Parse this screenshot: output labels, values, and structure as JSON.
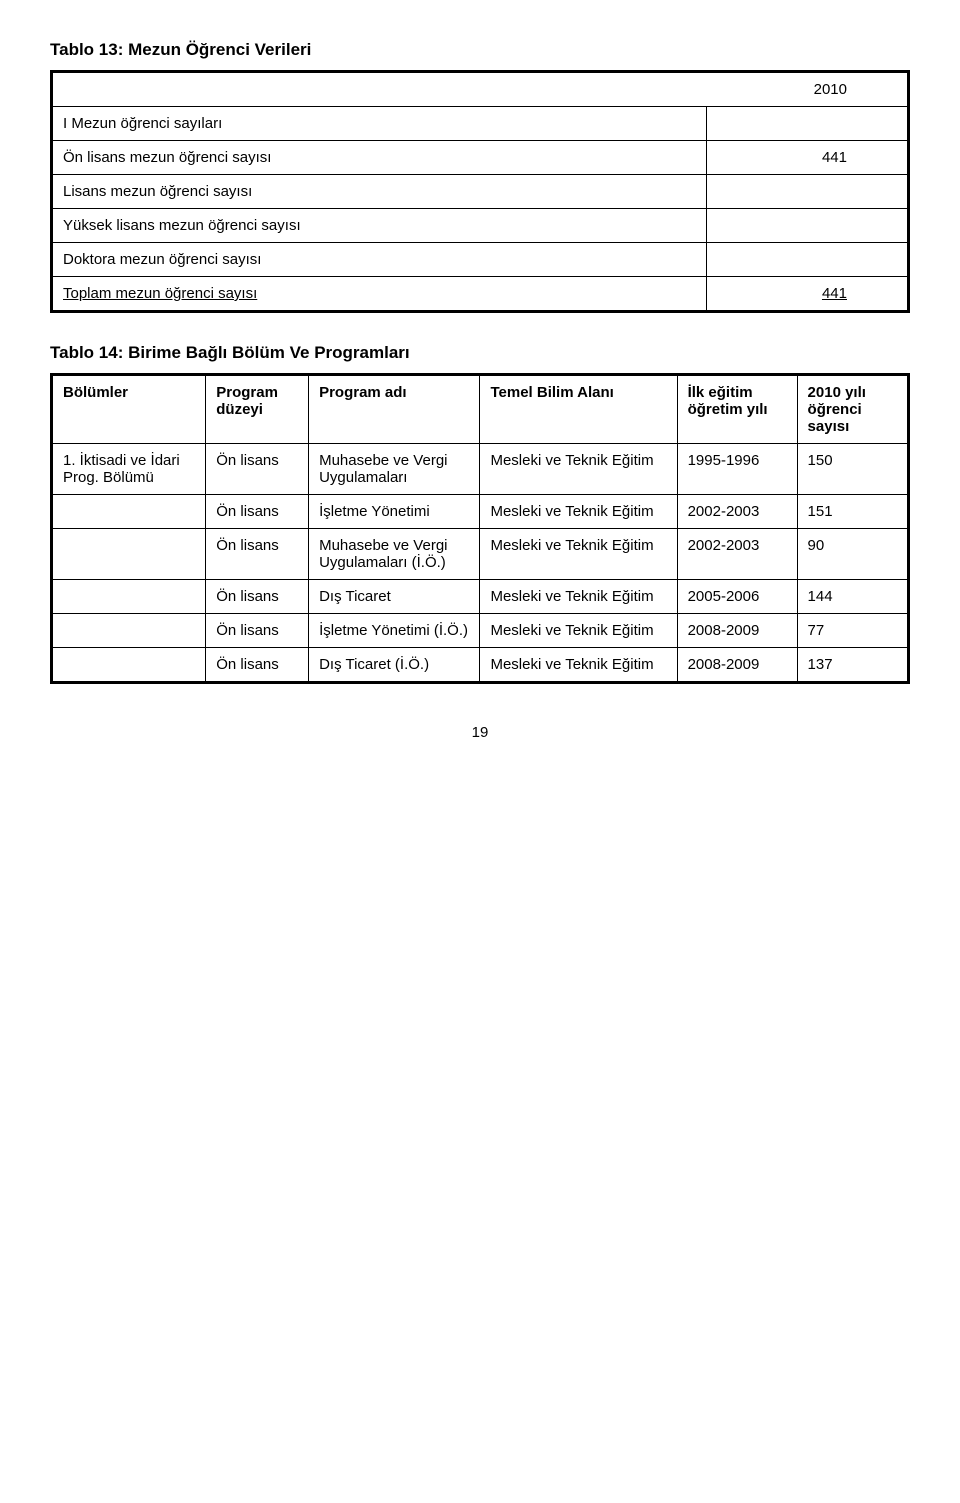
{
  "table13": {
    "title": "Tablo 13: Mezun Öğrenci Verileri",
    "year": "2010",
    "rows": [
      {
        "label": "I Mezun öğrenci sayıları",
        "value": ""
      },
      {
        "label": "Ön lisans mezun öğrenci sayısı",
        "value": "441"
      },
      {
        "label": "Lisans mezun öğrenci sayısı",
        "value": ""
      },
      {
        "label": "Yüksek lisans mezun öğrenci sayısı",
        "value": ""
      },
      {
        "label": "Doktora mezun öğrenci sayısı",
        "value": ""
      },
      {
        "label": "Toplam mezun öğrenci sayısı",
        "value": "441",
        "underline": true
      }
    ]
  },
  "table14": {
    "title": "Tablo 14: Birime Bağlı Bölüm Ve Programları",
    "headers": {
      "bolumler": "Bölümler",
      "duzeyi": "Program düzeyi",
      "program_adi": "Program adı",
      "temel": "Temel Bilim Alanı",
      "ilk_egitim": "İlk eğitim öğretim yılı",
      "ogrenci": "2010 yılı öğrenci sayısı"
    },
    "rows": [
      {
        "bolum": "1. İktisadi ve İdari Prog. Bölümü",
        "duzeyi": "Ön lisans",
        "program": "Muhasebe ve Vergi Uygulamaları",
        "temel": "Mesleki ve Teknik Eğitim",
        "yil": "1995-1996",
        "sayi": "150"
      },
      {
        "bolum": "",
        "duzeyi": "Ön lisans",
        "program": "İşletme Yönetimi",
        "temel": "Mesleki ve Teknik Eğitim",
        "yil": "2002-2003",
        "sayi": "151"
      },
      {
        "bolum": "",
        "duzeyi": "Ön lisans",
        "program": "Muhasebe ve Vergi Uygulamaları (İ.Ö.)",
        "temel": "Mesleki ve Teknik Eğitim",
        "yil": "2002-2003",
        "sayi": "90"
      },
      {
        "bolum": "",
        "duzeyi": "Ön lisans",
        "program": "Dış Ticaret",
        "temel": "Mesleki ve Teknik Eğitim",
        "yil": "2005-2006",
        "sayi": "144"
      },
      {
        "bolum": "",
        "duzeyi": "Ön lisans",
        "program": "İşletme Yönetimi (İ.Ö.)",
        "temel": "Mesleki ve Teknik Eğitim",
        "yil": "2008-2009",
        "sayi": "77"
      },
      {
        "bolum": "",
        "duzeyi": "Ön lisans",
        "program": "Dış Ticaret (İ.Ö.)",
        "temel": "Mesleki ve Teknik Eğitim",
        "yil": "2008-2009",
        "sayi": "137"
      }
    ]
  },
  "page_number": "19"
}
